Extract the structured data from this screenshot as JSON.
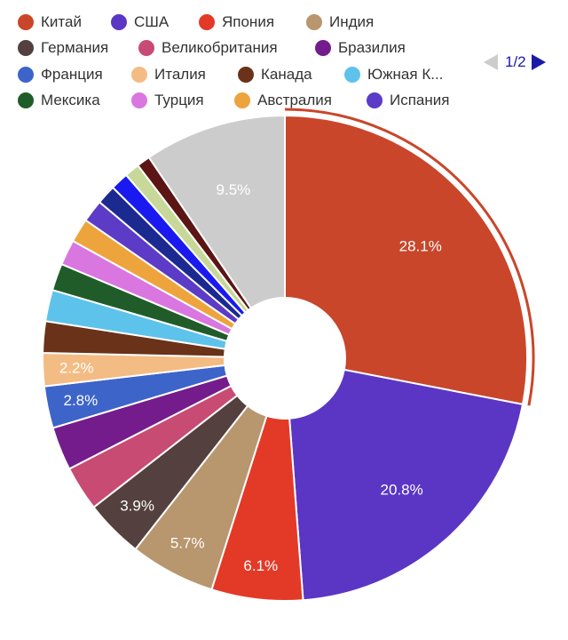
{
  "chart_data": {
    "type": "pie",
    "variant": "donut",
    "legend_position": "top",
    "series": [
      {
        "name": "Китай",
        "value": 28.1,
        "color": "#c9462a",
        "label": "28.1%",
        "highlighted": true
      },
      {
        "name": "США",
        "value": 20.8,
        "color": "#5b36c4",
        "label": "20.8%"
      },
      {
        "name": "Япония",
        "value": 6.1,
        "color": "#e33a27",
        "label": "6.1%"
      },
      {
        "name": "Индия",
        "value": 5.7,
        "color": "#b8966e",
        "label": "5.7%"
      },
      {
        "name": "Германия",
        "value": 3.9,
        "color": "#54403e",
        "label": "3.9%"
      },
      {
        "name": "Великобритания",
        "value": 3.0,
        "color": "#c84b74",
        "label": ""
      },
      {
        "name": "Бразилия",
        "value": 2.9,
        "color": "#741c8c",
        "label": ""
      },
      {
        "name": "Франция",
        "value": 2.8,
        "color": "#3d64c9",
        "label": "2.8%"
      },
      {
        "name": "Италия",
        "value": 2.2,
        "color": "#f3bc84",
        "label": "2.2%"
      },
      {
        "name": "Канада",
        "value": 2.1,
        "color": "#6a3219",
        "label": ""
      },
      {
        "name": "Южная К...",
        "value": 2.1,
        "color": "#5ec3ea",
        "label": ""
      },
      {
        "name": "Мексика",
        "value": 1.8,
        "color": "#205c2a",
        "label": ""
      },
      {
        "name": "Турция",
        "value": 1.7,
        "color": "#da76e0",
        "label": ""
      },
      {
        "name": "Австралия",
        "value": 1.6,
        "color": "#eda43c",
        "label": ""
      },
      {
        "name": "Испания",
        "value": 1.5,
        "color": "#5c3bc6",
        "label": ""
      },
      {
        "name": "",
        "value": 1.3,
        "color": "#1b2a91",
        "label": ""
      },
      {
        "name": "",
        "value": 1.2,
        "color": "#1a1af0",
        "label": ""
      },
      {
        "name": "",
        "value": 1.0,
        "color": "#c7d898",
        "label": ""
      },
      {
        "name": "",
        "value": 0.9,
        "color": "#5c1515",
        "label": ""
      },
      {
        "name": "",
        "value": 9.5,
        "color": "#cccccc",
        "label": "9.5%"
      }
    ]
  },
  "legend_page": "1/2"
}
